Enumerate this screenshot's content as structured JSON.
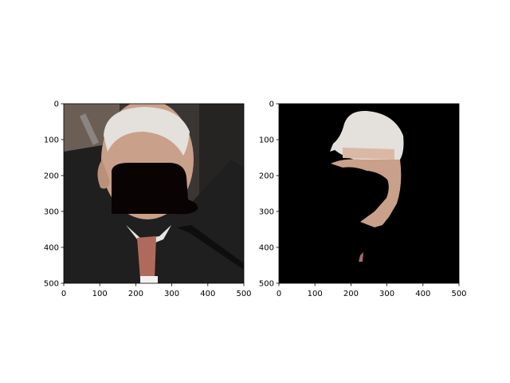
{
  "figure": {
    "background": "#ffffff"
  },
  "chart_data": [
    {
      "type": "image",
      "title": "",
      "xlabel": "",
      "ylabel": "",
      "xlim": [
        0,
        500
      ],
      "ylim": [
        500,
        0
      ],
      "x_ticks": [
        0,
        100,
        200,
        300,
        400,
        500
      ],
      "y_ticks": [
        0,
        100,
        200,
        300,
        400,
        500
      ],
      "grid": false,
      "content": "photo-of-man-with-black-occlusion-over-face",
      "colors": {
        "background_dark": "#2a2826",
        "suit": "#1e1e1e",
        "hair": "#e4e0dc",
        "skin": "#c9a08a",
        "occlusion": "#0a0303",
        "tie": "#b06a5c"
      }
    },
    {
      "type": "image",
      "title": "",
      "xlabel": "",
      "ylabel": "",
      "xlim": [
        0,
        500
      ],
      "ylim": [
        500,
        0
      ],
      "x_ticks": [
        0,
        100,
        200,
        300,
        400,
        500
      ],
      "y_ticks": [
        0,
        100,
        200,
        300,
        400,
        500
      ],
      "grid": false,
      "content": "segmentation-mask-of-visible-head-region",
      "colors": {
        "background": "#000000",
        "hair": "#e4e0dc",
        "skin": "#c9a08a"
      }
    }
  ]
}
